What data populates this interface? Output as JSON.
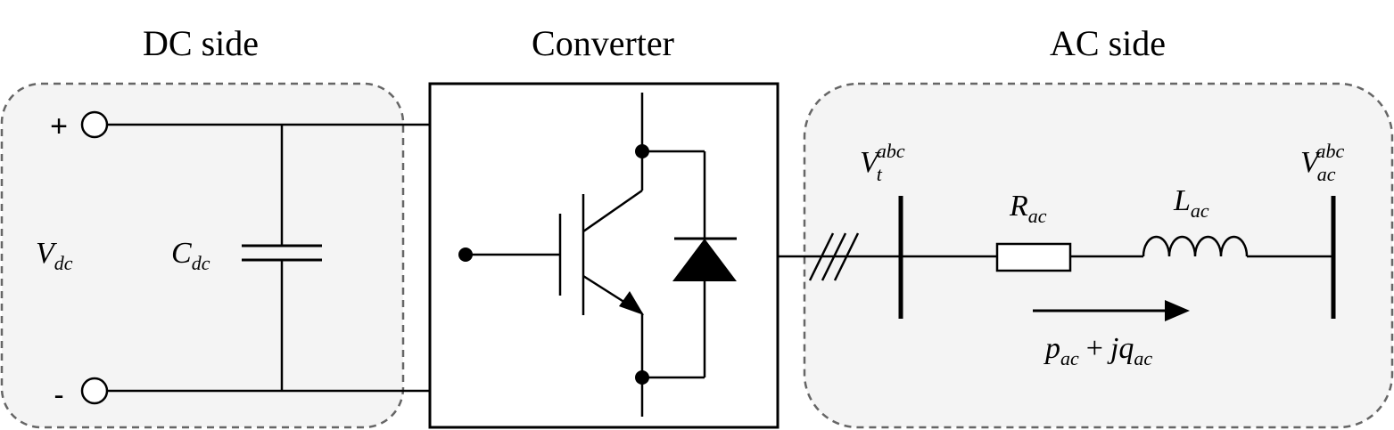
{
  "sections": {
    "dc_title": "DC side",
    "converter_title": "Converter",
    "ac_title": "AC side"
  },
  "dc": {
    "plus_sign": "+",
    "minus_sign": "-",
    "vdc_main": "V",
    "vdc_sub": "dc",
    "cdc_main": "C",
    "cdc_sub": "dc"
  },
  "ac": {
    "vt_main": "V",
    "vt_sub": "t",
    "vt_sup": "abc",
    "vac_main": "V",
    "vac_sub": "ac",
    "vac_sup": "abc",
    "r_main": "R",
    "r_sub": "ac",
    "l_main": "L",
    "l_sub": "ac",
    "power_p": "p",
    "power_p_sub": "ac",
    "power_plus": "+",
    "power_jq": "jq",
    "power_q_sub": "ac"
  },
  "colors": {
    "region_fill": "#f4f4f4",
    "region_stroke": "#666666",
    "line": "#000000"
  }
}
